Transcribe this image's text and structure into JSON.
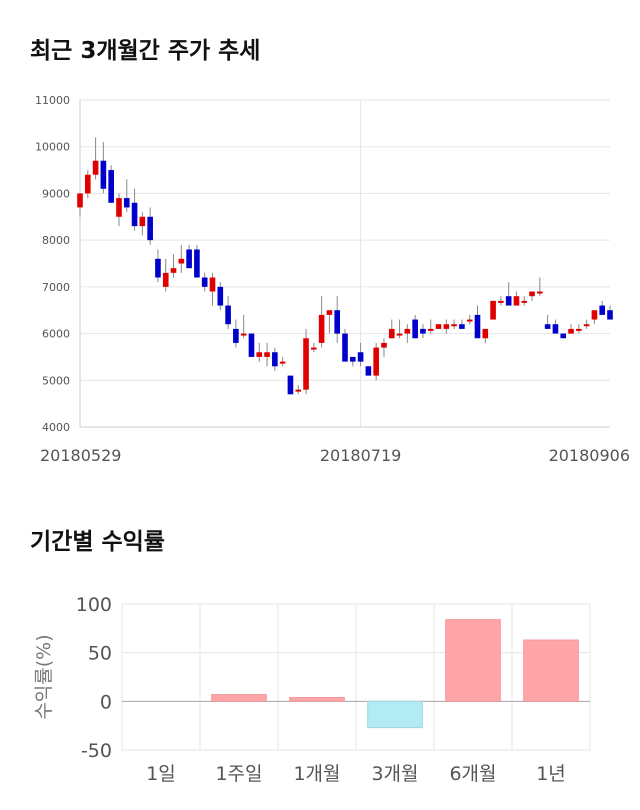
{
  "sections": {
    "price_title": "최근 3개월간 주가 추세",
    "returns_title": "기간별 수익률"
  },
  "chart_data": [
    {
      "type": "candlestick",
      "title": "최근 3개월간 주가 추세",
      "ylim": [
        4000,
        11000
      ],
      "yticks": [
        4000,
        5000,
        6000,
        7000,
        8000,
        9000,
        10000,
        11000
      ],
      "xtick_labels": [
        {
          "index": 0,
          "label": "20180529"
        },
        {
          "index": 36,
          "label": "20180719"
        },
        {
          "index": 72,
          "label": "20180906"
        }
      ],
      "grid": true,
      "colors": {
        "up": "#e00000",
        "down": "#0000cc",
        "wick": "#888888"
      },
      "candles": [
        [
          8700,
          9000,
          8500,
          9000
        ],
        [
          9000,
          9500,
          8900,
          9400
        ],
        [
          9400,
          10200,
          9300,
          9700
        ],
        [
          9700,
          10100,
          9000,
          9100
        ],
        [
          9500,
          9600,
          8800,
          8800
        ],
        [
          8500,
          9000,
          8300,
          8900
        ],
        [
          8900,
          9300,
          8600,
          8700
        ],
        [
          8800,
          9100,
          8200,
          8300
        ],
        [
          8300,
          8600,
          8100,
          8500
        ],
        [
          8500,
          8700,
          7900,
          8000
        ],
        [
          7600,
          7800,
          7100,
          7200
        ],
        [
          7000,
          7600,
          6900,
          7300
        ],
        [
          7300,
          7700,
          7200,
          7400
        ],
        [
          7500,
          7900,
          7300,
          7600
        ],
        [
          7800,
          7900,
          7400,
          7400
        ],
        [
          7800,
          7900,
          7200,
          7200
        ],
        [
          7200,
          7300,
          6900,
          7000
        ],
        [
          6900,
          7300,
          6600,
          7200
        ],
        [
          7000,
          7100,
          6500,
          6600
        ],
        [
          6600,
          6800,
          6100,
          6200
        ],
        [
          6100,
          6300,
          5700,
          5800
        ],
        [
          6000,
          6400,
          5900,
          6000
        ],
        [
          6000,
          6000,
          5500,
          5500
        ],
        [
          5500,
          5800,
          5400,
          5600
        ],
        [
          5500,
          5800,
          5300,
          5600
        ],
        [
          5600,
          5700,
          5200,
          5300
        ],
        [
          5400,
          5500,
          5300,
          5400
        ],
        [
          5100,
          5100,
          4700,
          4700
        ],
        [
          4800,
          4900,
          4700,
          4800
        ],
        [
          4800,
          6100,
          4700,
          5900
        ],
        [
          5700,
          5800,
          5600,
          5700
        ],
        [
          5800,
          6800,
          5700,
          6400
        ],
        [
          6400,
          6500,
          6000,
          6500
        ],
        [
          6500,
          6800,
          5800,
          6000
        ],
        [
          6000,
          6100,
          5400,
          5400
        ],
        [
          5500,
          5500,
          5300,
          5400
        ],
        [
          5600,
          5800,
          5300,
          5400
        ],
        [
          5300,
          5300,
          5100,
          5100
        ],
        [
          5100,
          5800,
          5000,
          5700
        ],
        [
          5700,
          5900,
          5500,
          5800
        ],
        [
          5900,
          6300,
          5900,
          6100
        ],
        [
          6000,
          6300,
          5900,
          6000
        ],
        [
          6000,
          6200,
          5800,
          6100
        ],
        [
          6300,
          6400,
          5900,
          5900
        ],
        [
          6100,
          6200,
          5900,
          6000
        ],
        [
          6100,
          6300,
          6000,
          6100
        ],
        [
          6100,
          6200,
          6100,
          6200
        ],
        [
          6100,
          6300,
          6000,
          6200
        ],
        [
          6200,
          6300,
          6100,
          6200
        ],
        [
          6200,
          6300,
          6100,
          6100
        ],
        [
          6300,
          6400,
          6200,
          6300
        ],
        [
          6400,
          6600,
          5900,
          5900
        ],
        [
          5900,
          6100,
          5800,
          6100
        ],
        [
          6300,
          6700,
          6300,
          6700
        ],
        [
          6700,
          6800,
          6600,
          6700
        ],
        [
          6800,
          7100,
          6600,
          6600
        ],
        [
          6600,
          6900,
          6600,
          6800
        ],
        [
          6700,
          6800,
          6600,
          6700
        ],
        [
          6800,
          6900,
          6700,
          6900
        ],
        [
          6900,
          7200,
          6800,
          6900
        ],
        [
          6200,
          6400,
          6100,
          6100
        ],
        [
          6200,
          6300,
          6000,
          6000
        ],
        [
          6000,
          6000,
          5900,
          5900
        ],
        [
          6000,
          6200,
          6000,
          6100
        ],
        [
          6100,
          6200,
          6000,
          6100
        ],
        [
          6200,
          6300,
          6100,
          6200
        ],
        [
          6300,
          6500,
          6200,
          6500
        ],
        [
          6600,
          6700,
          6400,
          6400
        ],
        [
          6500,
          6600,
          6300,
          6300
        ]
      ]
    },
    {
      "type": "bar",
      "title": "기간별 수익률",
      "ylabel": "수익률(%)",
      "categories": [
        "1일",
        "1주일",
        "1개월",
        "3개월",
        "6개월",
        "1년"
      ],
      "values": [
        0,
        7,
        4,
        -27,
        84,
        63
      ],
      "ylim": [
        -50,
        100
      ],
      "yticks": [
        -50,
        0,
        50,
        100
      ],
      "grid": true,
      "colors": {
        "positive": "#ffa5a8",
        "negative": "#b2ebf2"
      }
    }
  ]
}
